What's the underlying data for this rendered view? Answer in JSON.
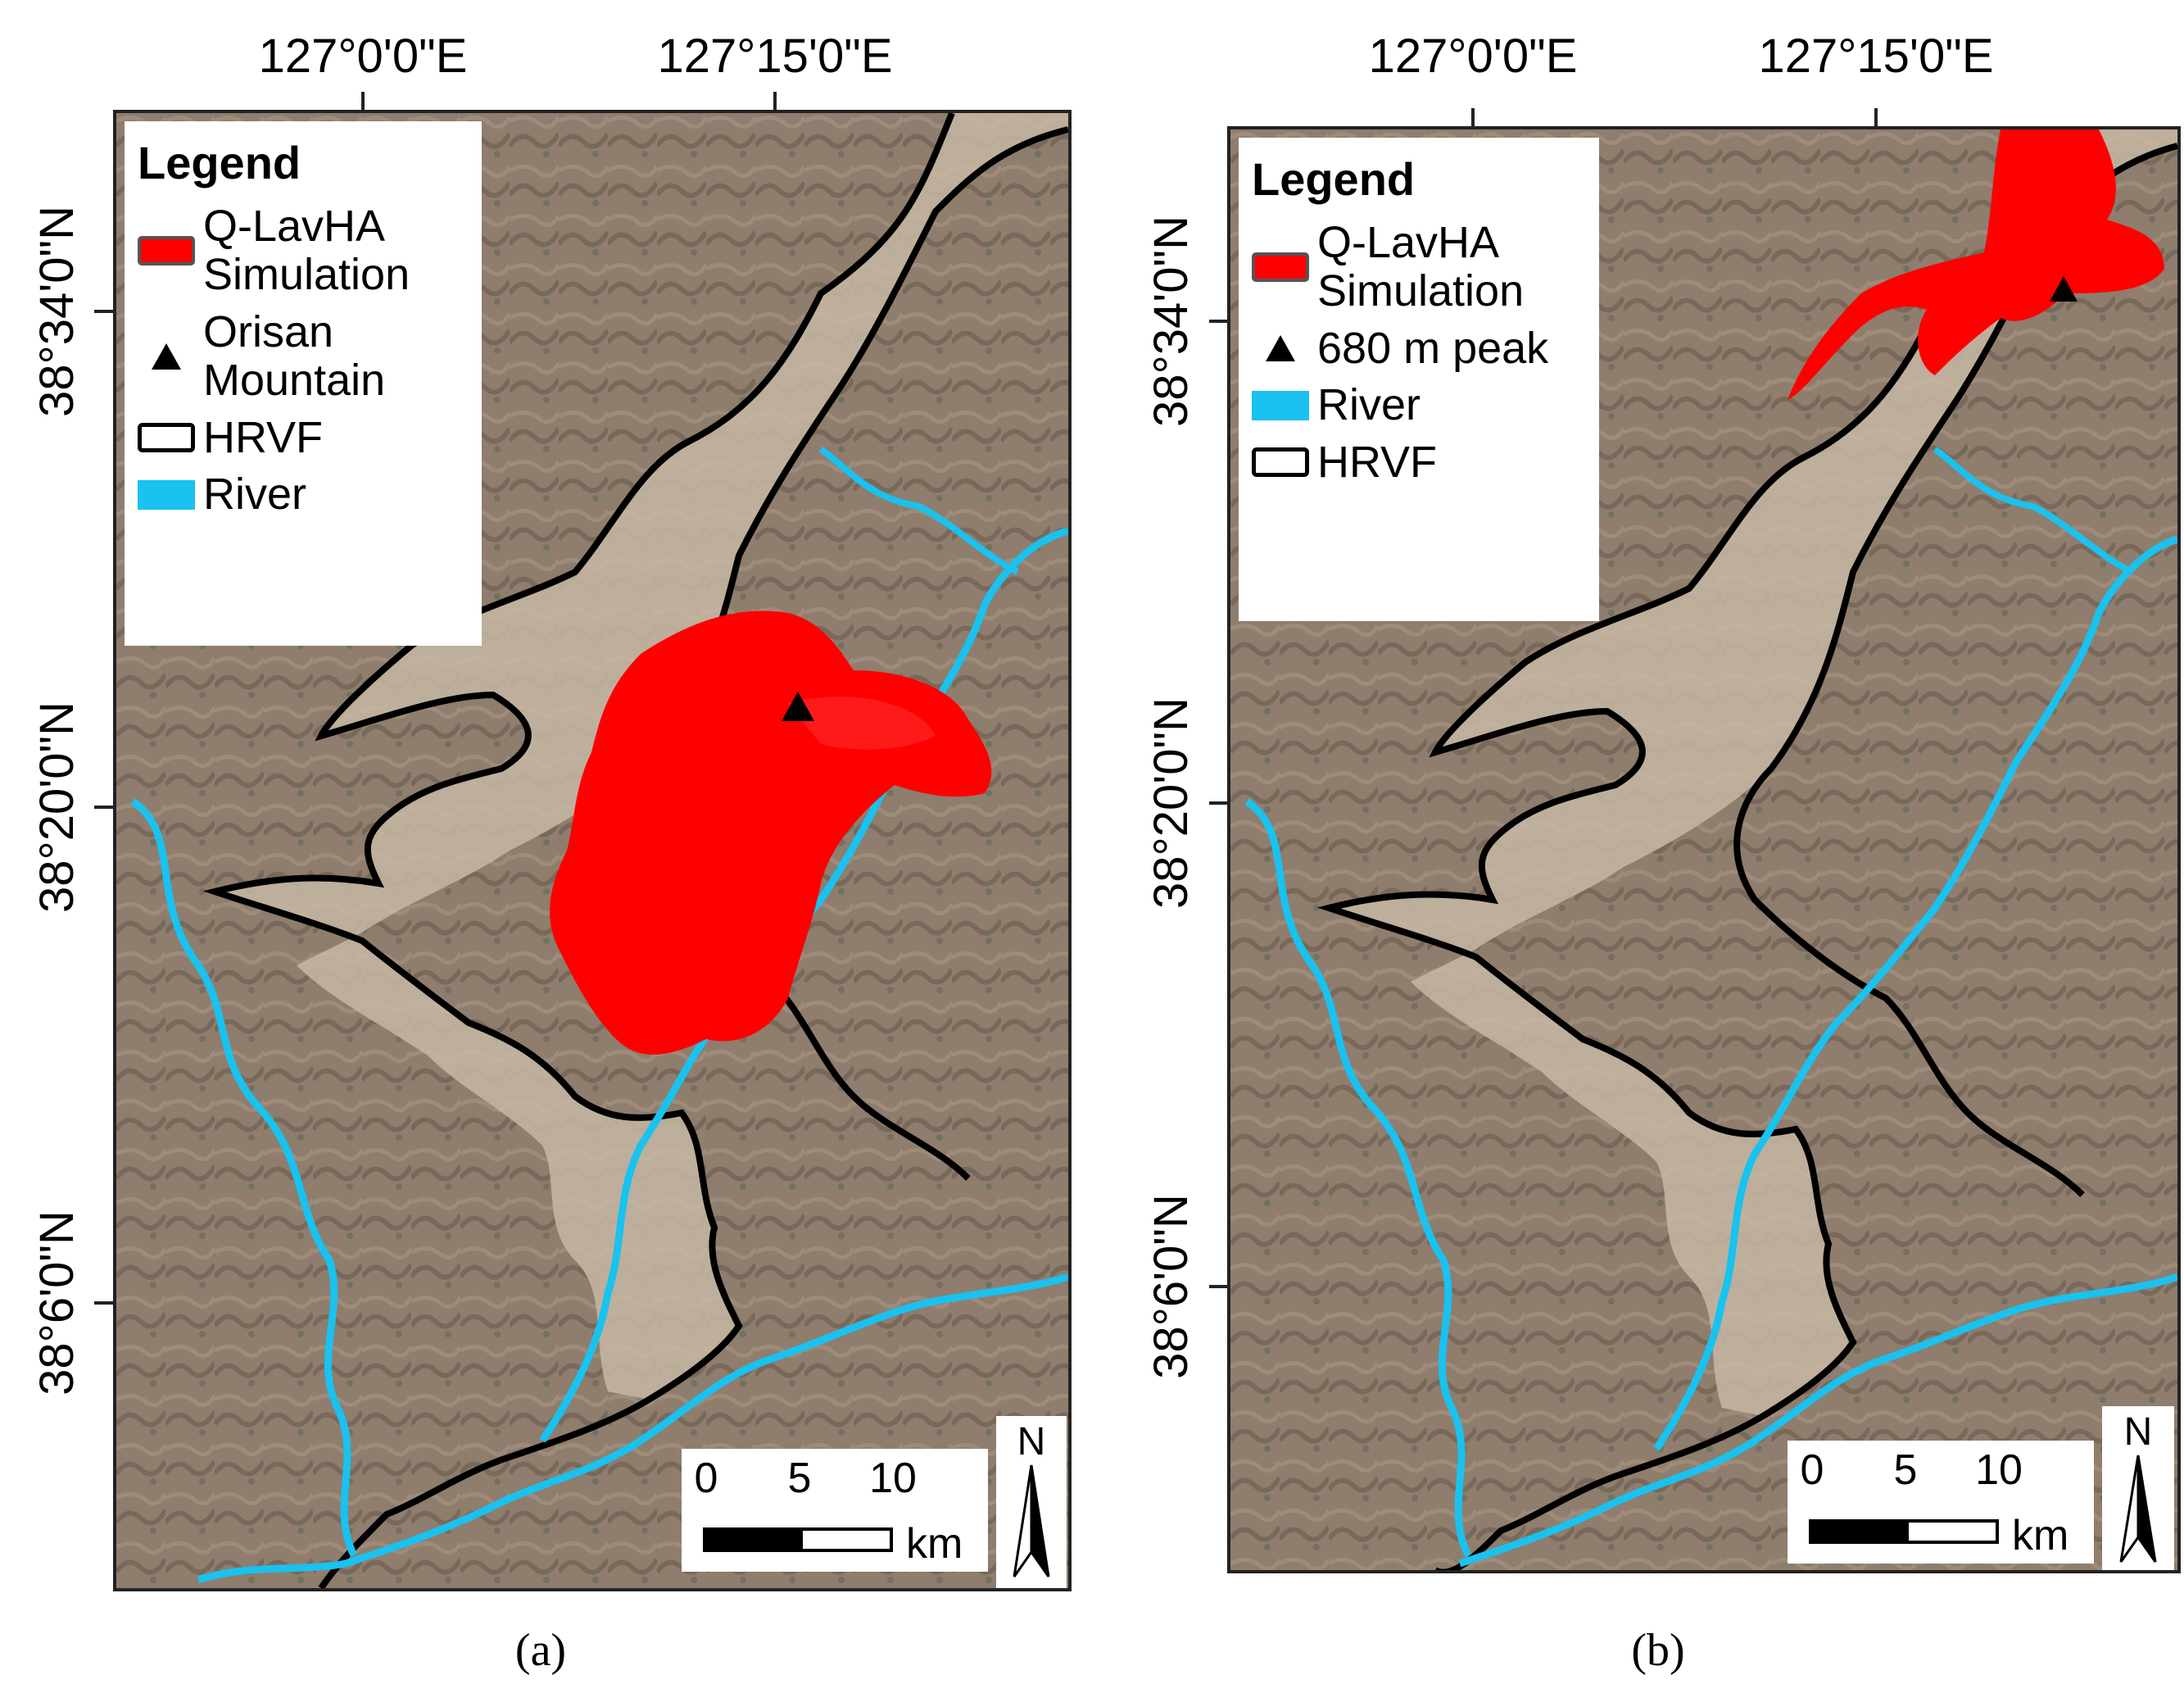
{
  "panels": [
    {
      "caption": "(a)",
      "lon_labels": [
        "127°0'0\"E",
        "127°15'0\"E"
      ],
      "lat_labels": [
        "38°34'0\"N",
        "38°20'0\"N",
        "38°6'0\"N"
      ],
      "legend": {
        "title": "Legend",
        "items": [
          {
            "type": "flow",
            "label_lines": [
              "Q-LavHA",
              "Simulation"
            ]
          },
          {
            "type": "vent",
            "label_lines": [
              "Orisan",
              "Mountain"
            ]
          },
          {
            "type": "hrvf",
            "label_lines": [
              "HRVF"
            ]
          },
          {
            "type": "river",
            "label_lines": [
              "River"
            ]
          }
        ]
      },
      "scale": {
        "ticks": [
          "0",
          "5",
          "10"
        ],
        "unit": "km"
      },
      "north_label": "N"
    },
    {
      "caption": "(b)",
      "lon_labels": [
        "127°0'0\"E",
        "127°15'0\"E"
      ],
      "lat_labels": [
        "38°34'0\"N",
        "38°20'0\"N",
        "38°6'0\"N"
      ],
      "legend": {
        "title": "Legend",
        "items": [
          {
            "type": "flow",
            "label_lines": [
              "Q-LavHA",
              "Simulation"
            ]
          },
          {
            "type": "vent",
            "label_lines": [
              "680 m peak"
            ]
          },
          {
            "type": "river",
            "label_lines": [
              "River"
            ]
          },
          {
            "type": "hrvf",
            "label_lines": [
              "HRVF"
            ]
          }
        ]
      },
      "scale": {
        "ticks": [
          "0",
          "5",
          "10"
        ],
        "unit": "km"
      },
      "north_label": "N"
    }
  ],
  "colors": {
    "flow": "#ff0000",
    "river": "#19c2ef",
    "hrvf_outline": "#000000",
    "terrain_base": "#8f7d6e",
    "valley_floor": "#c7b7a5"
  }
}
